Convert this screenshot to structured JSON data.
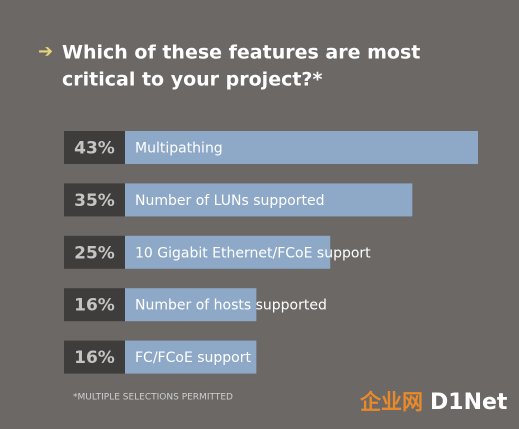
{
  "chart_data": {
    "type": "bar",
    "orientation": "horizontal",
    "title": [
      "Which of these features are most",
      "critical to your project?*"
    ],
    "categories": [
      "Multipathing",
      "Number of LUNs supported",
      "10 Gigabit Ethernet/FCoE support",
      "Number of hosts supported",
      "FC/FCoE support"
    ],
    "values": [
      43,
      35,
      25,
      16,
      16
    ],
    "value_labels": [
      "43%",
      "35%",
      "25%",
      "16%",
      "16%"
    ],
    "color": "#8ea9c8",
    "footnote": "*MULTIPLE SELECTIONS PERMITTED",
    "watermark": [
      "企业网",
      "D1Net"
    ]
  }
}
